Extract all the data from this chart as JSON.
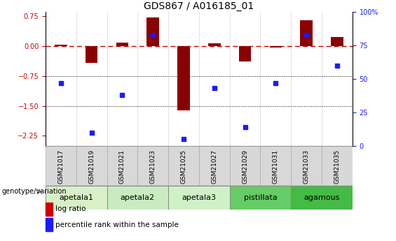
{
  "title": "GDS867 / A016185_01",
  "samples": [
    "GSM21017",
    "GSM21019",
    "GSM21021",
    "GSM21023",
    "GSM21025",
    "GSM21027",
    "GSM21029",
    "GSM21031",
    "GSM21033",
    "GSM21035"
  ],
  "log_ratio": [
    0.04,
    -0.42,
    0.08,
    0.72,
    -1.62,
    0.07,
    -0.38,
    -0.04,
    0.65,
    0.22
  ],
  "percentile_rank": [
    47,
    10,
    38,
    83,
    5,
    43,
    14,
    47,
    83,
    60
  ],
  "ylim_left": [
    -2.5,
    0.85
  ],
  "ylim_right": [
    0,
    100
  ],
  "yticks_left": [
    0.75,
    0,
    -0.75,
    -1.5,
    -2.25
  ],
  "yticks_right": [
    100,
    75,
    50,
    25,
    0
  ],
  "hlines": [
    -0.75,
    -1.5
  ],
  "genotype_groups": [
    {
      "label": "apetala1",
      "start": 0,
      "end": 2,
      "color": "#d8f0c8"
    },
    {
      "label": "apetala2",
      "start": 2,
      "end": 4,
      "color": "#c8eccO"
    },
    {
      "label": "apetala3",
      "start": 4,
      "end": 6,
      "color": "#d0f0c8"
    },
    {
      "label": "pistillata",
      "start": 6,
      "end": 8,
      "color": "#66cc66"
    },
    {
      "label": "agamous",
      "start": 8,
      "end": 10,
      "color": "#44bb44"
    }
  ],
  "bar_color": "#8B0000",
  "dot_color": "#1a1aff",
  "zero_line_color": "#CC0000",
  "title_fontsize": 10,
  "tick_fontsize": 7,
  "legend_fontsize": 7.5,
  "genotype_label_fontsize": 8,
  "sample_label_fontsize": 6.5
}
